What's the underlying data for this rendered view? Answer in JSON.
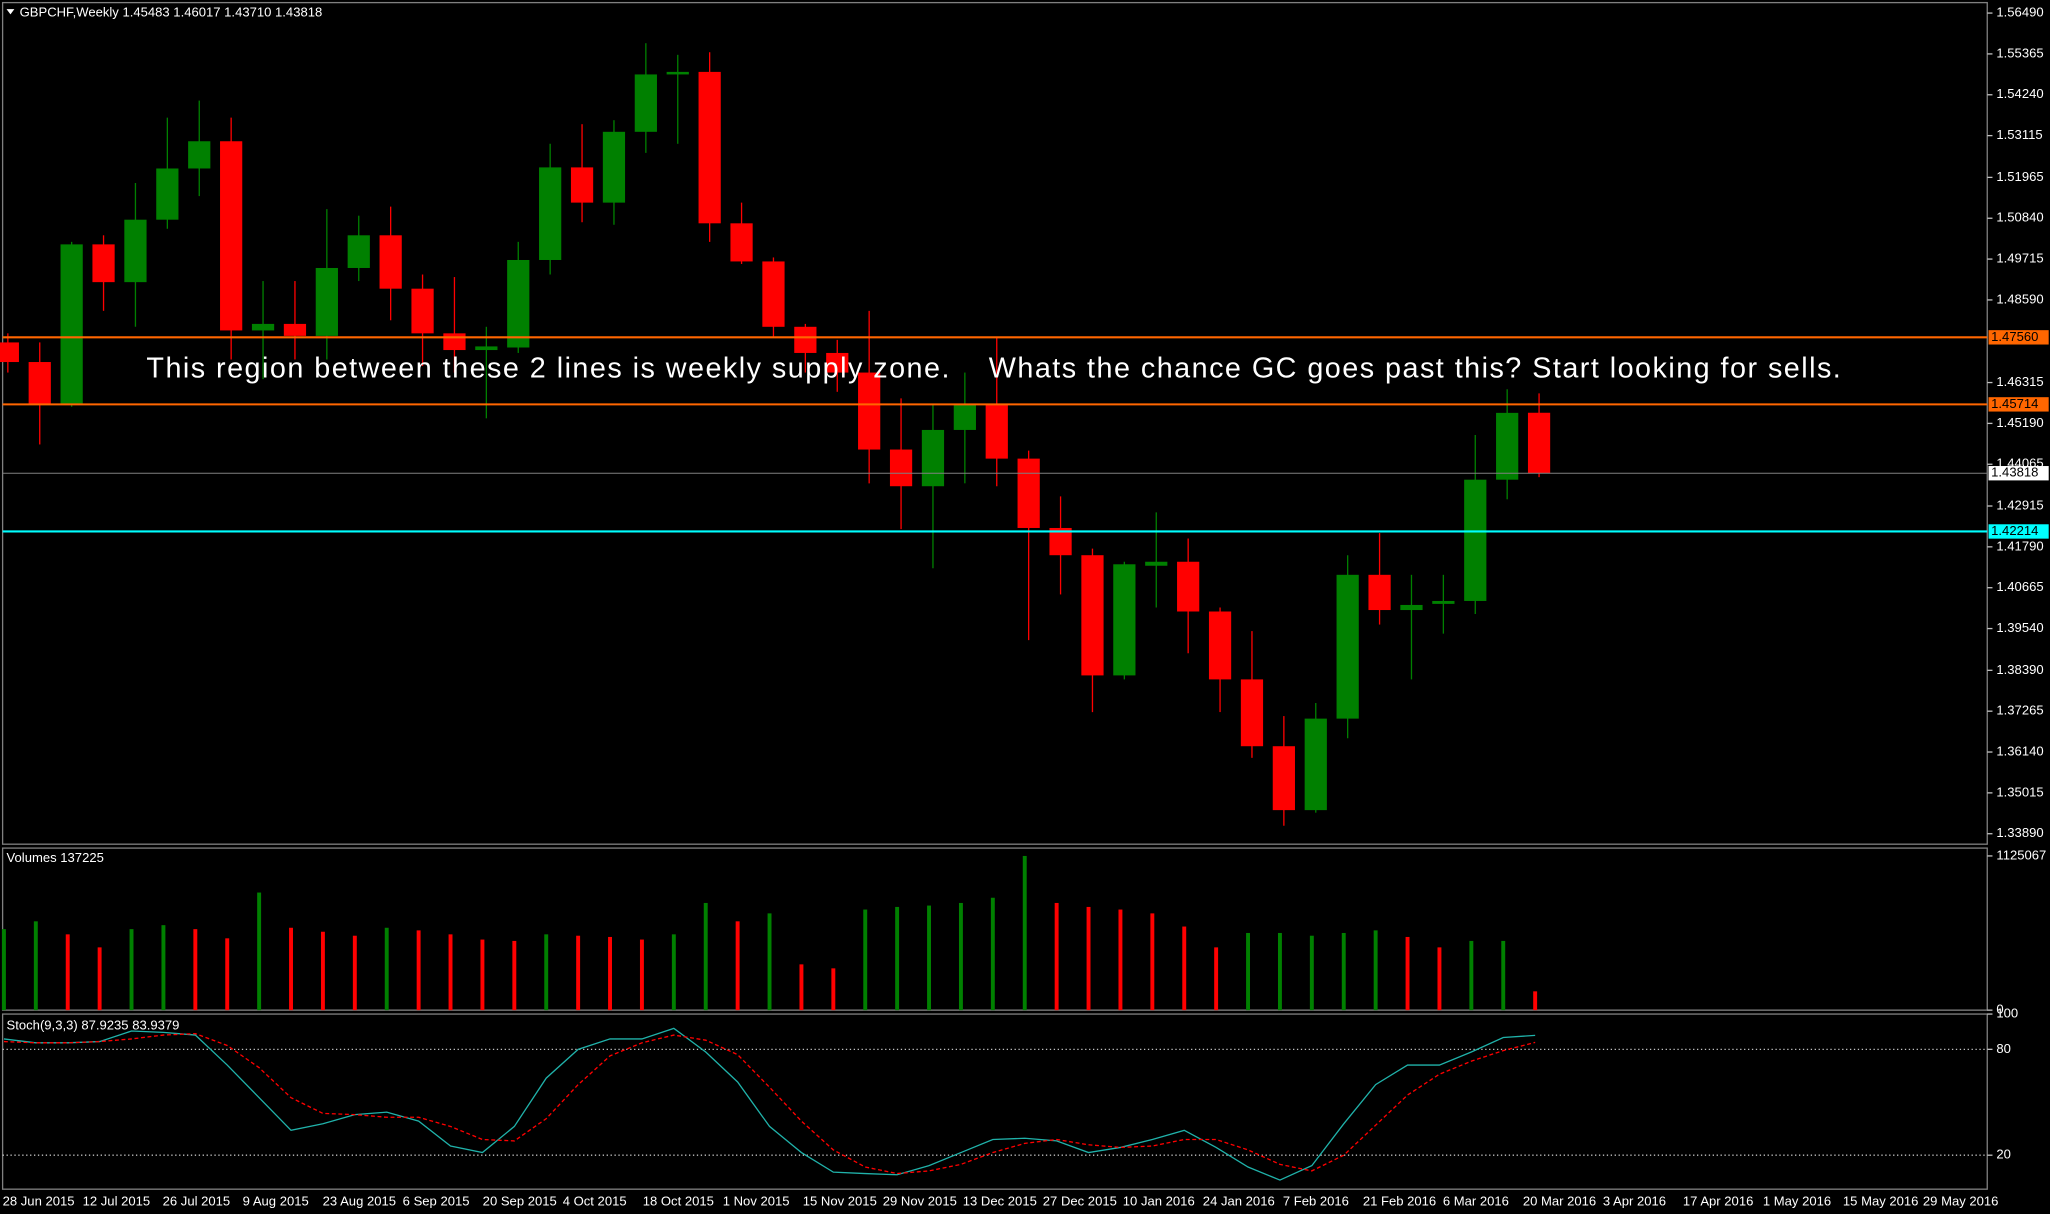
{
  "chart_data": [
    {
      "type": "candlestick",
      "title": "GBPCHF,Weekly  1.45483 1.46017 1.43710 1.43818",
      "annotation": "This region between these 2 lines is weekly supply zone.    Whats the chance GC goes past this? Start looking for sells.",
      "open": [
        1.4742,
        1.4688,
        1.457,
        1.5012,
        1.4908,
        1.508,
        1.5221,
        1.5296,
        1.4775,
        1.4793,
        1.476,
        1.4947,
        1.5037,
        1.489,
        1.4767,
        1.4721,
        1.4728,
        1.4969,
        1.5224,
        1.5127,
        1.5322,
        1.548,
        1.5487,
        1.507,
        1.4965,
        1.4785,
        1.4713,
        1.4659,
        1.4447,
        1.4346,
        1.4501,
        1.457,
        1.4422,
        1.4231,
        1.4156,
        1.3825,
        1.4127,
        1.4138,
        1.4001,
        1.3814,
        1.363,
        1.3454,
        1.3706,
        1.4102,
        1.4005,
        1.4022,
        1.403,
        1.4364,
        1.45483
      ],
      "high": [
        1.4767,
        1.4742,
        1.5019,
        1.5037,
        1.5181,
        1.5361,
        1.5408,
        1.5361,
        1.4911,
        1.4911,
        1.5109,
        1.5091,
        1.5116,
        1.4929,
        1.4922,
        1.4785,
        1.5019,
        1.5289,
        1.5343,
        1.5354,
        1.5566,
        1.5534,
        1.5541,
        1.5127,
        1.4976,
        1.4793,
        1.4749,
        1.4829,
        1.4588,
        1.457,
        1.4659,
        1.4757,
        1.4444,
        1.4318,
        1.4174,
        1.4138,
        1.4274,
        1.4202,
        1.4012,
        1.3947,
        1.3713,
        1.3749,
        1.4156,
        1.4217,
        1.4102,
        1.4102,
        1.4487,
        1.4613,
        1.46017
      ],
      "low": [
        1.4659,
        1.4461,
        1.4565,
        1.4829,
        1.4785,
        1.5055,
        1.5145,
        1.4695,
        1.4641,
        1.4695,
        1.4695,
        1.4911,
        1.4803,
        1.4677,
        1.4659,
        1.4533,
        1.4713,
        1.4929,
        1.5073,
        1.5066,
        1.5264,
        1.5289,
        1.5019,
        1.4958,
        1.4757,
        1.4659,
        1.4606,
        1.4354,
        1.4228,
        1.412,
        1.4354,
        1.4346,
        1.3922,
        1.4048,
        1.3724,
        1.3814,
        1.4012,
        1.3886,
        1.3724,
        1.3598,
        1.3411,
        1.3447,
        1.3652,
        1.3965,
        1.3814,
        1.394,
        1.3994,
        1.431,
        1.4371
      ],
      "close": [
        1.4688,
        1.457,
        1.5012,
        1.4908,
        1.508,
        1.5221,
        1.5296,
        1.4775,
        1.4793,
        1.476,
        1.4947,
        1.5037,
        1.489,
        1.4767,
        1.4721,
        1.4731,
        1.4969,
        1.5224,
        1.5127,
        1.5322,
        1.548,
        1.5487,
        1.507,
        1.4965,
        1.4785,
        1.4713,
        1.4659,
        1.4447,
        1.4346,
        1.4501,
        1.457,
        1.4422,
        1.4231,
        1.4156,
        1.3825,
        1.4131,
        1.4138,
        1.4001,
        1.3814,
        1.363,
        1.3454,
        1.3706,
        1.4102,
        1.4005,
        1.4019,
        1.403,
        1.4364,
        1.4548,
        1.43818
      ],
      "up_color": "#008000",
      "down_color": "#ff0000",
      "ylim": [
        1.3389,
        1.5649
      ],
      "yticks": [
        {
          "value": 1.5649,
          "label": "1.56490"
        },
        1.55365,
        {
          "value": 1.5424,
          "label": "1.54240"
        },
        1.53115,
        1.51965,
        {
          "value": 1.5084,
          "label": "1.50840"
        },
        1.49715,
        {
          "value": 1.4859,
          "label": "1.48590"
        },
        1.46315,
        {
          "value": 1.4519,
          "label": "1.45190"
        },
        1.44065,
        1.42915,
        {
          "value": 1.4179,
          "label": "1.41790"
        },
        1.40665,
        {
          "value": 1.3954,
          "label": "1.39540"
        },
        {
          "value": 1.3839,
          "label": "1.38390"
        },
        1.37265,
        {
          "value": 1.3614,
          "label": "1.36140"
        },
        1.35015,
        {
          "value": 1.3389,
          "label": "1.33890"
        }
      ],
      "hlines": [
        {
          "value": 1.4756,
          "label": "1.47560",
          "color": "#ff6600"
        },
        {
          "value": 1.45714,
          "color": "#ff6600"
        },
        {
          "value": 1.43818,
          "color": "#808080"
        },
        {
          "value": 1.42214,
          "color": "#00ffff"
        }
      ],
      "x_labels": [
        "28 Jun 2015",
        "12 Jul 2015",
        "26 Jul 2015",
        "9 Aug 2015",
        "23 Aug 2015",
        "6 Sep 2015",
        "20 Sep 2015",
        "4 Oct 2015",
        "18 Oct 2015",
        "1 Nov 2015",
        "15 Nov 2015",
        "29 Nov 2015",
        "13 Dec 2015",
        "27 Dec 2015",
        "10 Jan 2016",
        "24 Jan 2016",
        "7 Feb 2016",
        "21 Feb 2016",
        "6 Mar 2016",
        "20 Mar 2016",
        "3 Apr 2016",
        "17 Apr 2016",
        "1 May 2016",
        "15 May 2016",
        "29 May 2016"
      ]
    },
    {
      "type": "bar",
      "title": "Volumes 137225",
      "values": [
        591000,
        648000,
        553000,
        458000,
        591000,
        620000,
        591000,
        524000,
        858000,
        601000,
        572000,
        543000,
        601000,
        582000,
        553000,
        515000,
        505000,
        553000,
        543000,
        534000,
        515000,
        553000,
        782000,
        648000,
        706000,
        334000,
        305000,
        734000,
        753000,
        763000,
        782000,
        820000,
        1125000,
        782000,
        753000,
        734000,
        706000,
        610000,
        458000,
        563000,
        563000,
        543000,
        563000,
        582000,
        534000,
        458000,
        505000,
        505000,
        137225
      ],
      "colors": [
        "#008000",
        "#008000",
        "#ff0000",
        "#ff0000",
        "#008000",
        "#008000",
        "#ff0000",
        "#ff0000",
        "#008000",
        "#ff0000",
        "#ff0000",
        "#ff0000",
        "#008000",
        "#ff0000",
        "#ff0000",
        "#ff0000",
        "#ff0000",
        "#008000",
        "#ff0000",
        "#ff0000",
        "#ff0000",
        "#008000",
        "#008000",
        "#ff0000",
        "#008000",
        "#ff0000",
        "#ff0000",
        "#008000",
        "#008000",
        "#008000",
        "#008000",
        "#008000",
        "#008000",
        "#ff0000",
        "#ff0000",
        "#ff0000",
        "#ff0000",
        "#ff0000",
        "#ff0000",
        "#008000",
        "#008000",
        "#008000",
        "#008000",
        "#008000",
        "#ff0000",
        "#ff0000",
        "#008000",
        "#008000",
        "#ff0000"
      ],
      "ylim": [
        0,
        1125067
      ],
      "yticks": [
        1125067,
        0
      ]
    },
    {
      "type": "line",
      "title": "Stoch(9,3,3) 87.9235 83.9379",
      "series": [
        {
          "color": "#20b2aa",
          "values": [
            85.9,
            83.7,
            83.7,
            84.4,
            90.4,
            89.6,
            88.1,
            71.1,
            52.6,
            34.1,
            37.8,
            43.0,
            44.4,
            39.3,
            25.2,
            21.5,
            36.3,
            63.7,
            80.0,
            85.9,
            85.9,
            91.9,
            78.5,
            61.5,
            36.3,
            21.5,
            10.4,
            9.6,
            8.9,
            14.1,
            21.5,
            28.9,
            29.6,
            28.1,
            21.5,
            24.4,
            28.9,
            34.1,
            24.4,
            13.3,
            5.9,
            14.1,
            37.8,
            60.0,
            71.1,
            71.1,
            78.5,
            86.7,
            87.9235
          ]
        },
        {
          "color": "#ff0000",
          "dashed": true,
          "values": [
            84.4,
            83.7,
            83.7,
            84.4,
            85.9,
            88.1,
            88.9,
            82.2,
            69.6,
            52.6,
            43.7,
            43.0,
            41.5,
            41.5,
            36.3,
            28.9,
            28.1,
            40.7,
            60.0,
            76.3,
            83.7,
            88.1,
            85.2,
            77.0,
            58.5,
            39.3,
            23.0,
            13.3,
            9.6,
            11.1,
            14.8,
            21.5,
            26.7,
            28.9,
            25.9,
            24.4,
            25.2,
            28.9,
            28.9,
            23.0,
            14.8,
            11.1,
            20.0,
            37.0,
            54.1,
            65.9,
            73.3,
            79.3,
            83.9379
          ]
        }
      ],
      "ylim": [
        0,
        100
      ],
      "yticks": [
        100,
        80,
        20
      ],
      "levels": [
        80,
        20
      ]
    }
  ]
}
